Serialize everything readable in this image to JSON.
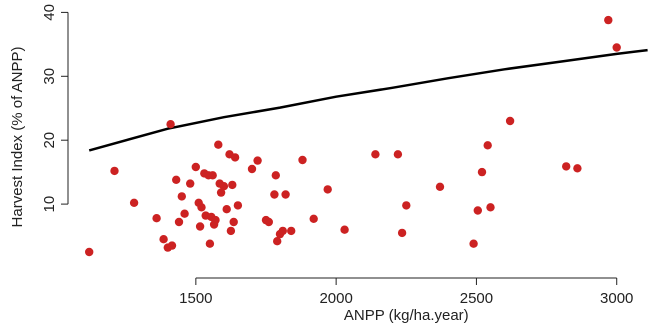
{
  "chart_data": {
    "type": "scatter",
    "title": "",
    "xlabel": "ANPP (kg/ha.year)",
    "ylabel": "Harvest Index (% of ANPP)",
    "xlim": [
      1080,
      3140
    ],
    "ylim": [
      0,
      41
    ],
    "xticks": [
      1500,
      2000,
      2500,
      3000
    ],
    "yticks": [
      10,
      20,
      30,
      40
    ],
    "xtick_labels": [
      "1500",
      "2000",
      "2500",
      "3000"
    ],
    "ytick_labels": [
      "10",
      "20",
      "30",
      "40"
    ],
    "grid": false,
    "legend": "none",
    "colors": {
      "points": "#cc2222",
      "line": "#000000",
      "axis": "#222222"
    },
    "series": [
      {
        "type": "scatter",
        "points": [
          [
            1120,
            2.5
          ],
          [
            1210,
            15.2
          ],
          [
            1280,
            10.2
          ],
          [
            1360,
            7.8
          ],
          [
            1385,
            4.5
          ],
          [
            1400,
            3.2
          ],
          [
            1410,
            22.5
          ],
          [
            1415,
            3.5
          ],
          [
            1430,
            13.8
          ],
          [
            1440,
            7.2
          ],
          [
            1450,
            11.2
          ],
          [
            1460,
            8.5
          ],
          [
            1480,
            13.2
          ],
          [
            1500,
            15.8
          ],
          [
            1510,
            10.2
          ],
          [
            1515,
            6.5
          ],
          [
            1520,
            9.5
          ],
          [
            1530,
            14.8
          ],
          [
            1535,
            8.2
          ],
          [
            1545,
            14.5
          ],
          [
            1550,
            3.8
          ],
          [
            1555,
            8.0
          ],
          [
            1560,
            14.5
          ],
          [
            1565,
            6.8
          ],
          [
            1570,
            7.5
          ],
          [
            1580,
            19.3
          ],
          [
            1585,
            13.2
          ],
          [
            1590,
            11.8
          ],
          [
            1600,
            12.8
          ],
          [
            1610,
            9.2
          ],
          [
            1620,
            17.8
          ],
          [
            1625,
            5.8
          ],
          [
            1630,
            13.0
          ],
          [
            1635,
            7.2
          ],
          [
            1640,
            17.3
          ],
          [
            1650,
            9.8
          ],
          [
            1700,
            15.5
          ],
          [
            1720,
            16.8
          ],
          [
            1750,
            7.5
          ],
          [
            1760,
            7.2
          ],
          [
            1780,
            11.5
          ],
          [
            1785,
            14.5
          ],
          [
            1790,
            4.2
          ],
          [
            1800,
            5.3
          ],
          [
            1810,
            5.8
          ],
          [
            1820,
            11.5
          ],
          [
            1840,
            5.8
          ],
          [
            1880,
            16.9
          ],
          [
            1920,
            7.7
          ],
          [
            1970,
            12.3
          ],
          [
            2030,
            6.0
          ],
          [
            2140,
            17.8
          ],
          [
            2220,
            17.8
          ],
          [
            2235,
            5.5
          ],
          [
            2250,
            9.8
          ],
          [
            2370,
            12.7
          ],
          [
            2490,
            3.8
          ],
          [
            2505,
            9.0
          ],
          [
            2520,
            15.0
          ],
          [
            2540,
            19.2
          ],
          [
            2550,
            9.5
          ],
          [
            2620,
            23.0
          ],
          [
            2820,
            15.9
          ],
          [
            2860,
            15.6
          ],
          [
            2970,
            38.8
          ],
          [
            3000,
            34.5
          ]
        ]
      },
      {
        "type": "line",
        "points": [
          [
            1120,
            18.4
          ],
          [
            1400,
            21.8
          ],
          [
            1600,
            23.6
          ],
          [
            1800,
            25.1
          ],
          [
            2000,
            26.8
          ],
          [
            2200,
            28.2
          ],
          [
            2400,
            29.7
          ],
          [
            2600,
            31.1
          ],
          [
            2800,
            32.3
          ],
          [
            3000,
            33.5
          ],
          [
            3110,
            34.1
          ]
        ]
      }
    ]
  }
}
